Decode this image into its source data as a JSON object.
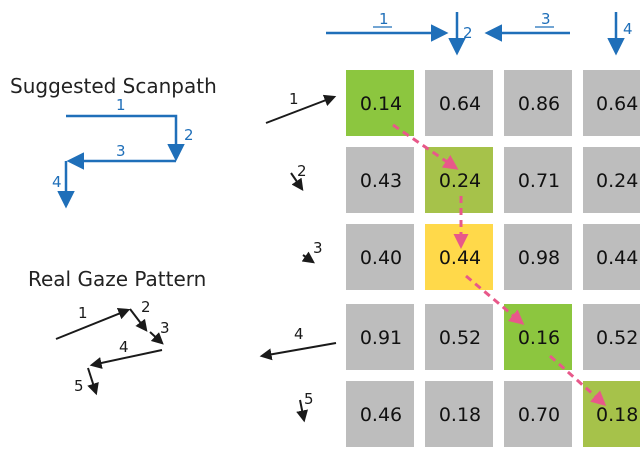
{
  "titles": {
    "suggested": "Suggested Scanpath",
    "real": "Real Gaze Pattern"
  },
  "colors": {
    "blue": "#1f6fb9",
    "black": "#1a1a1a",
    "pink": "#e8588a",
    "gray": "#bdbdbd",
    "green": "#8cc63f",
    "olive": "#a6c24a",
    "yellow": "#ffd94a"
  },
  "suggested_steps": [
    "1",
    "2",
    "3",
    "4"
  ],
  "real_steps": [
    "1",
    "2",
    "3",
    "4",
    "5"
  ],
  "top_steps": [
    "1",
    "2",
    "3",
    "4"
  ],
  "row_steps": [
    "1",
    "2",
    "3",
    "4",
    "5"
  ],
  "grid": {
    "rows": [
      [
        "0.14",
        "0.64",
        "0.86",
        "0.64"
      ],
      [
        "0.43",
        "0.24",
        "0.71",
        "0.24"
      ],
      [
        "0.40",
        "0.44",
        "0.98",
        "0.44"
      ],
      [
        "0.91",
        "0.52",
        "0.16",
        "0.52"
      ],
      [
        "0.46",
        "0.18",
        "0.70",
        "0.18"
      ]
    ],
    "highlights": [
      {
        "row": 0,
        "col": 0,
        "color": "green"
      },
      {
        "row": 1,
        "col": 1,
        "color": "olive"
      },
      {
        "row": 2,
        "col": 1,
        "color": "yellow"
      },
      {
        "row": 3,
        "col": 2,
        "color": "green"
      },
      {
        "row": 4,
        "col": 3,
        "color": "olive"
      }
    ]
  }
}
